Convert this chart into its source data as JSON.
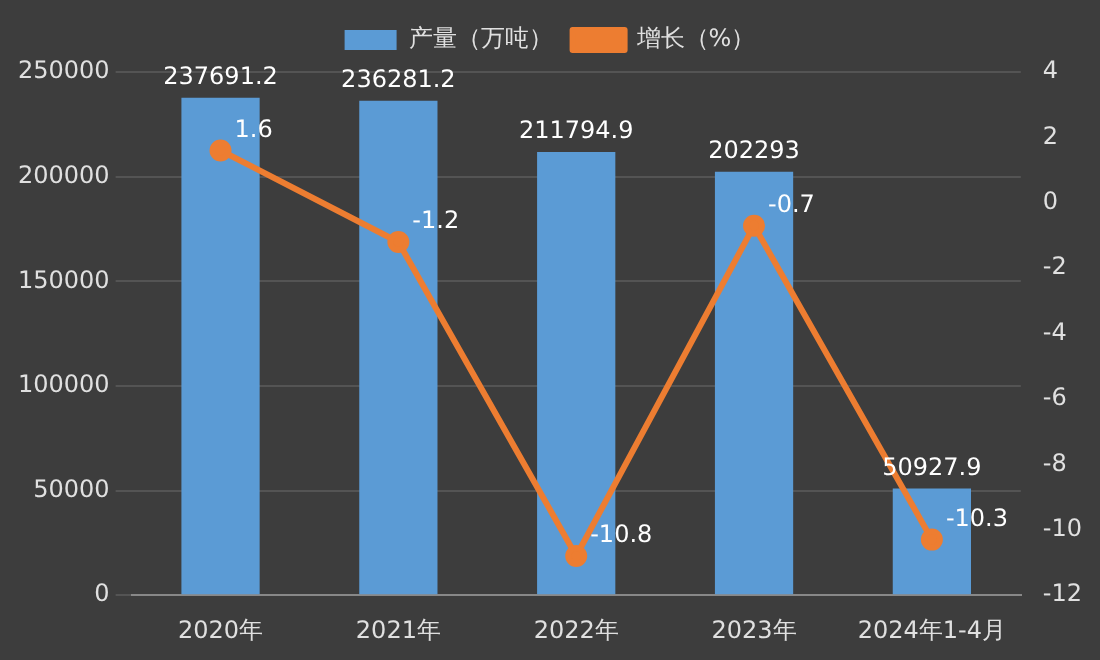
{
  "chart_data": {
    "type": "bar",
    "categories": [
      "2020年",
      "2021年",
      "2022年",
      "2023年",
      "2024年1-4月"
    ],
    "series": [
      {
        "name": "产量（万吨）",
        "color": "#5b9bd5",
        "values": [
          237691.2,
          236281.2,
          211794.9,
          202293,
          50927.9
        ]
      },
      {
        "name": "增长（%）",
        "type": "line",
        "axis": "y2",
        "color": "#ed7d31",
        "values": [
          1.6,
          -1.2,
          -10.8,
          -0.7,
          -10.3
        ]
      }
    ],
    "ylim": [
      0,
      250000
    ],
    "yticks": [
      0,
      50000,
      100000,
      150000,
      200000,
      250000
    ],
    "y2lim": [
      -12,
      4
    ],
    "y2ticks": [
      -12,
      -10,
      -8,
      -6,
      -4,
      -2,
      0,
      2,
      4
    ],
    "grid": "y",
    "legend": "top",
    "marker": "circle",
    "data_labels": true
  }
}
